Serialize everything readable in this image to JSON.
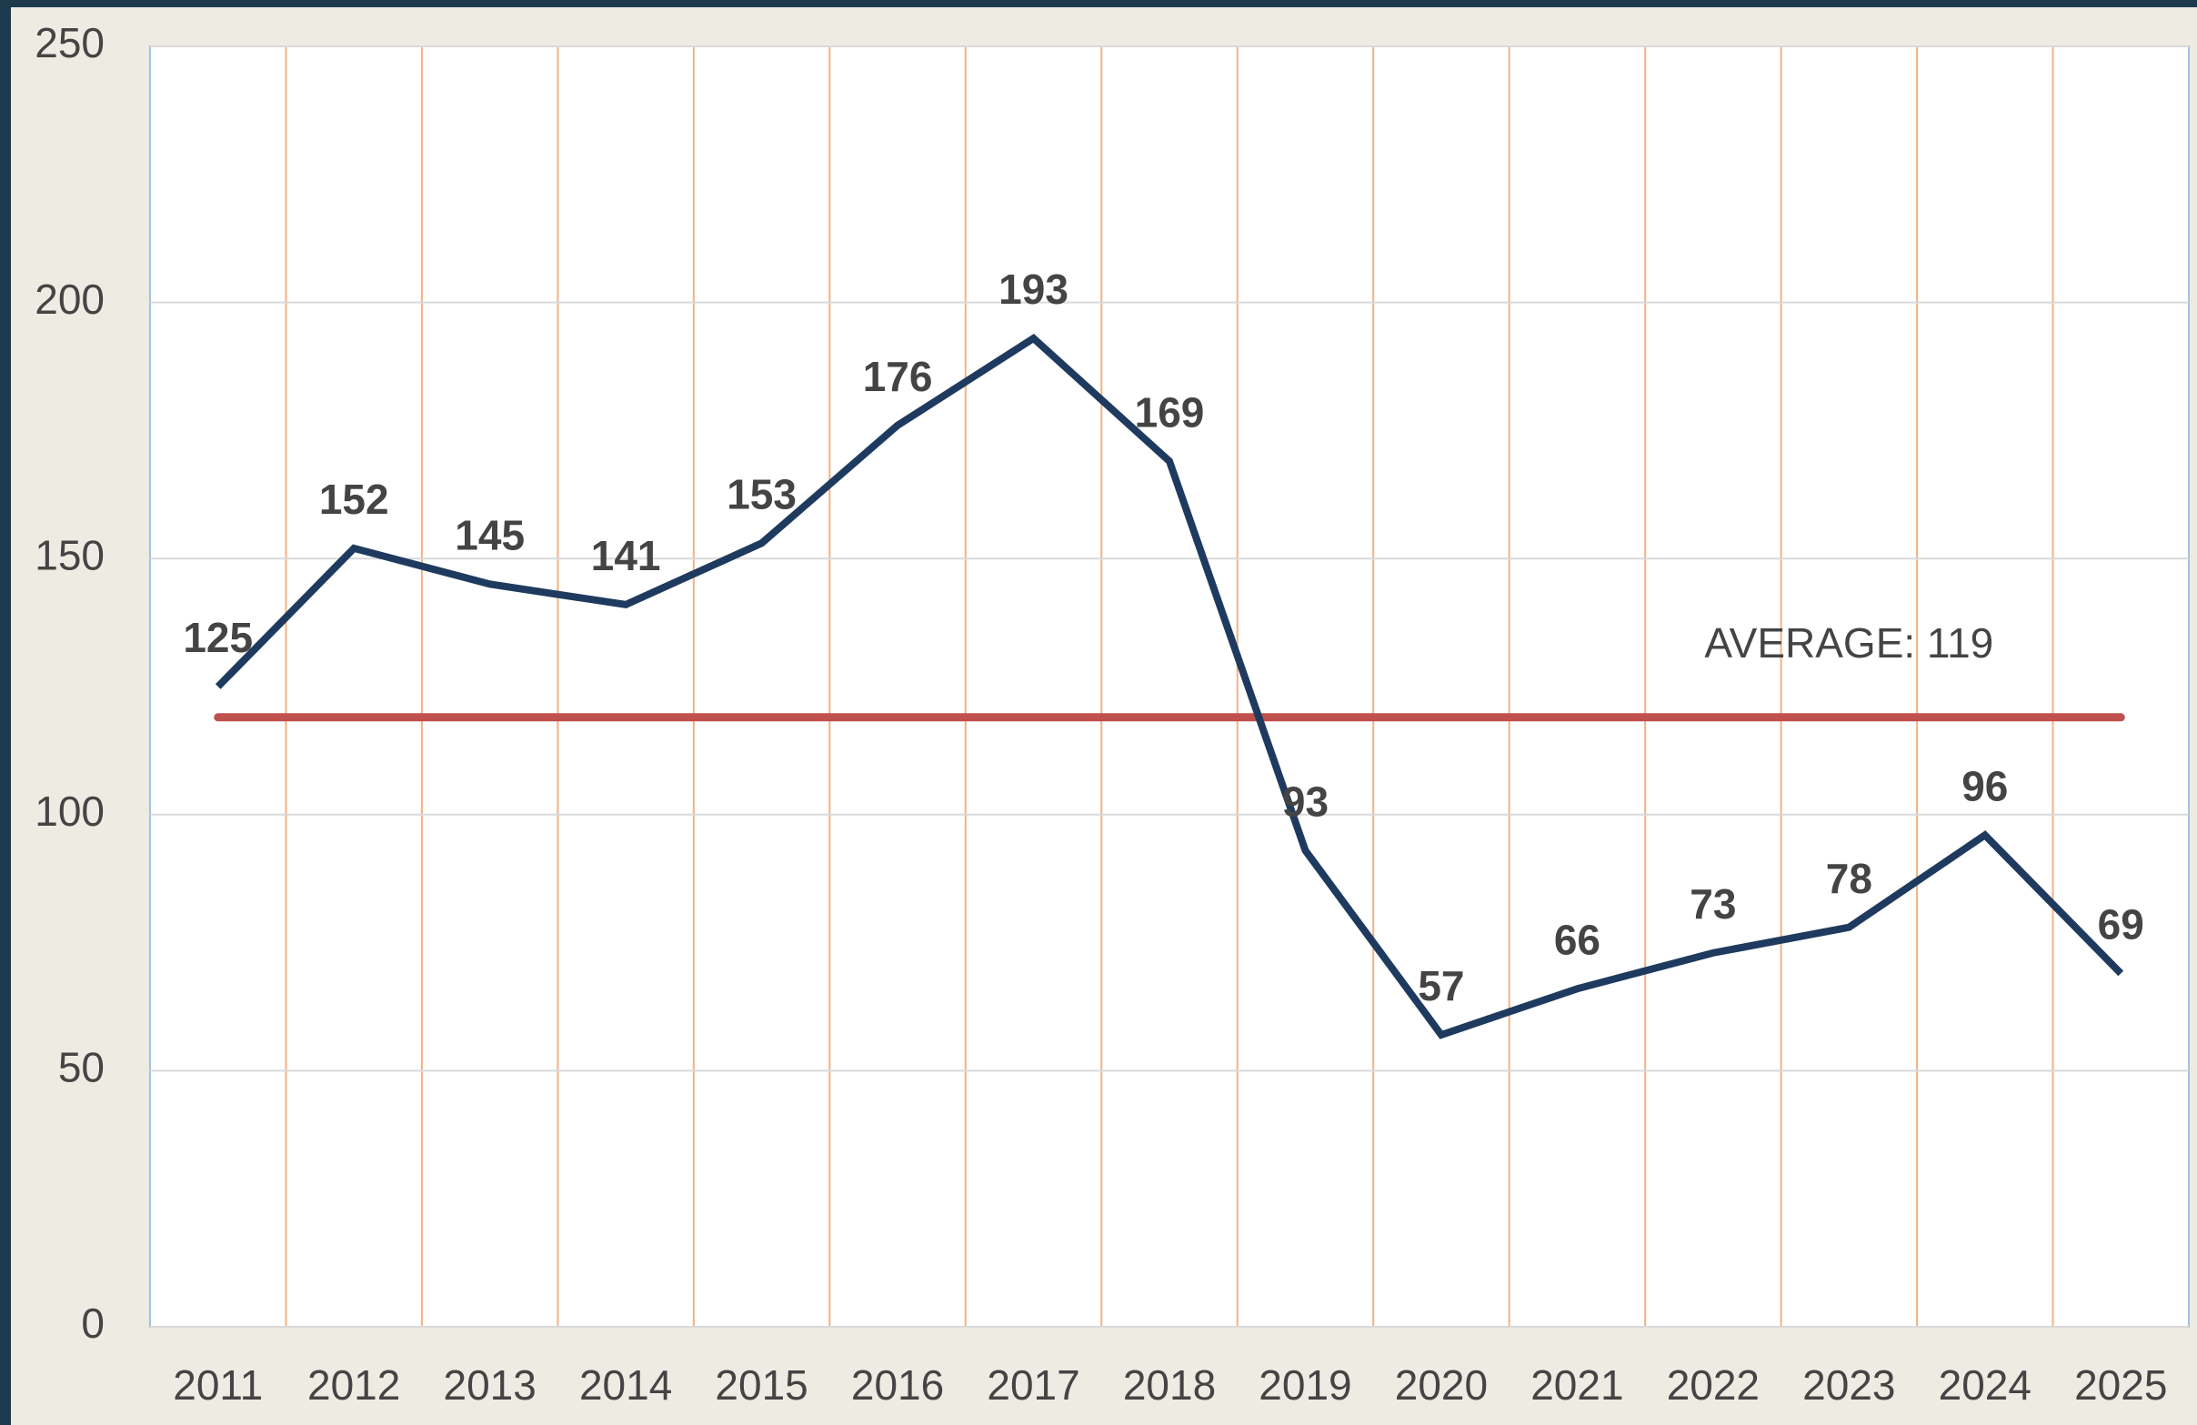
{
  "chart_data": {
    "type": "line",
    "categories": [
      "2011",
      "2012",
      "2013",
      "2014",
      "2015",
      "2016",
      "2017",
      "2018",
      "2019",
      "2020",
      "2021",
      "2022",
      "2023",
      "2024",
      "2025"
    ],
    "series": [
      {
        "color": "#1f3a5f",
        "values": [
          125,
          152,
          145,
          141,
          153,
          176,
          193,
          169,
          93,
          57,
          66,
          73,
          78,
          96,
          69
        ]
      }
    ],
    "average": {
      "value": 119,
      "label": "AVERAGE: 119",
      "color": "#c0504d"
    },
    "ylim": [
      0,
      250
    ],
    "yticks": [
      0,
      50,
      100,
      150,
      200,
      250
    ],
    "grid": true
  }
}
